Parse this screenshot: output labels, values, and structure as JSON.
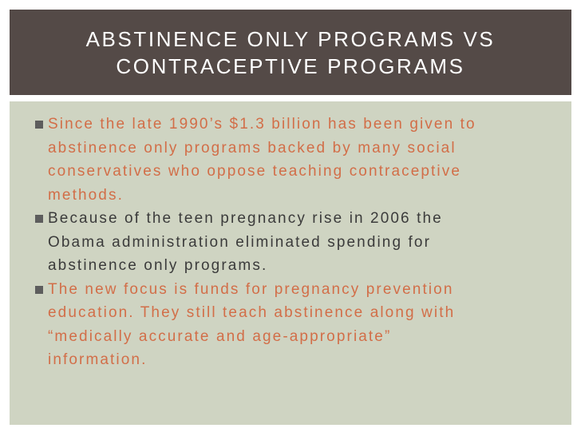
{
  "slide": {
    "title_lines": [
      "ABSTINENCE ONLY PROGRAMS VS",
      "CONTRACEPTIVE PROGRAMS"
    ],
    "bullets": [
      {
        "lines": [
          "Since the late 1990’s $1.3 billion has been given to",
          "abstinence only programs backed by many social",
          "conservatives who oppose teaching contraceptive",
          "methods."
        ]
      },
      {
        "lines": [
          "Because of the teen pregnancy rise in 2006 the",
          "Obama administration eliminated spending for",
          "abstinence only programs."
        ]
      },
      {
        "lines": [
          "The new focus is funds for pregnancy prevention",
          "education. They still teach abstinence along with",
          "“medically accurate and age-appropriate”",
          "information."
        ]
      }
    ]
  },
  "colors": {
    "title_bar": "#544a47",
    "content_bg": "#cfd4c2",
    "accent_text": "#d26e48",
    "dark_text": "#3b3b3b",
    "bullet_marker": "#5d5d5d"
  },
  "icons": {
    "bullet": "square-bullet-icon"
  }
}
